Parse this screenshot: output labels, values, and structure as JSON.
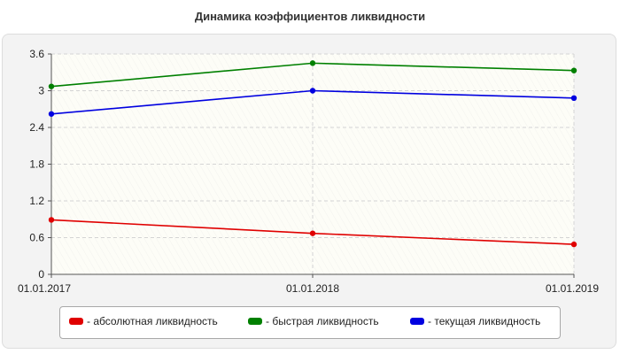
{
  "chart_data": {
    "type": "line",
    "title": "Динамика коэффициентов ликвидности",
    "x": [
      "01.01.2017",
      "01.01.2018",
      "01.01.2019"
    ],
    "ylim": [
      0,
      3.6
    ],
    "yticks": [
      "0",
      "0.6",
      "1.2",
      "1.8",
      "2.4",
      "3",
      "3.6"
    ],
    "grid": true,
    "legend_position": "bottom",
    "series": [
      {
        "name": "- абсолютная ликвидность",
        "color": "#e00000",
        "values": [
          0.89,
          0.67,
          0.49
        ]
      },
      {
        "name": "- быстрая ликвидность",
        "color": "#008000",
        "values": [
          3.07,
          3.45,
          3.33
        ]
      },
      {
        "name": "- текущая ликвидность",
        "color": "#0000e0",
        "values": [
          2.62,
          3.0,
          2.88
        ]
      }
    ]
  }
}
